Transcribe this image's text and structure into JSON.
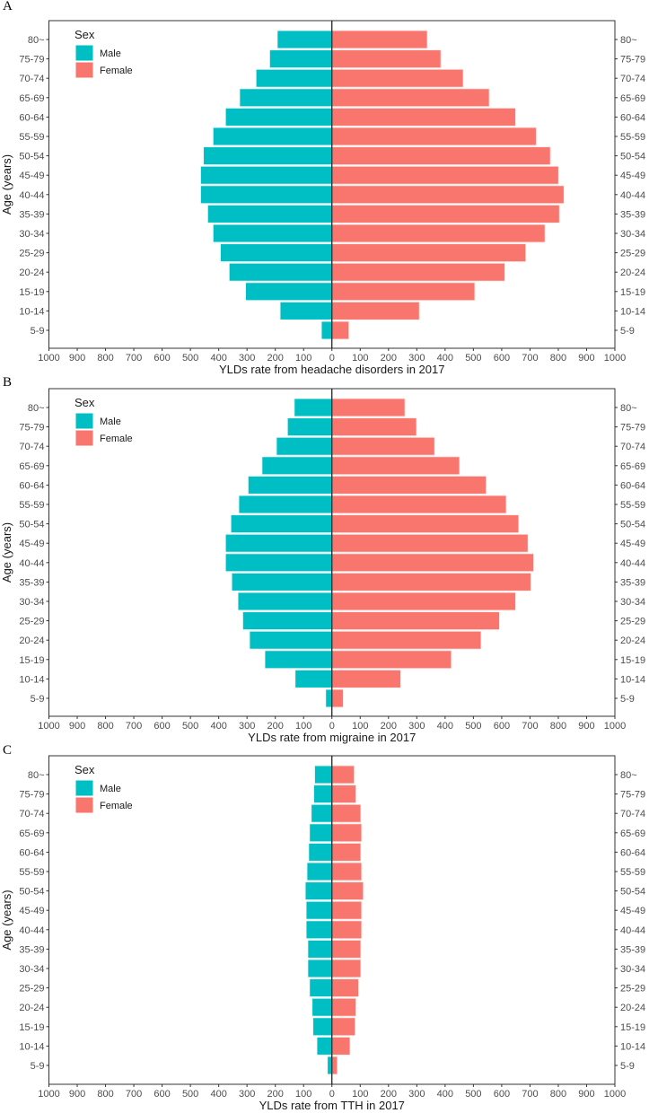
{
  "chart_data": [
    {
      "type": "bar",
      "panel_label": "A",
      "orientation": "horizontal-pyramid",
      "categories": [
        "80~",
        "75-79",
        "70-74",
        "65-69",
        "60-64",
        "55-59",
        "50-54",
        "45-49",
        "40-44",
        "35-39",
        "30-34",
        "25-29",
        "20-24",
        "15-19",
        "10-14",
        "5-9"
      ],
      "series": [
        {
          "name": "Male",
          "color": "#00BFC4",
          "values": [
            193,
            220,
            268,
            326,
            376,
            420,
            454,
            464,
            464,
            439,
            420,
            394,
            363,
            305,
            183,
            37
          ]
        },
        {
          "name": "Female",
          "color": "#F8766D",
          "values": [
            337,
            385,
            464,
            556,
            649,
            722,
            772,
            801,
            820,
            804,
            753,
            685,
            611,
            505,
            309,
            60
          ]
        }
      ],
      "xlabel": "YLDs rate from headache disorders in 2017",
      "ylabel": "Age (years)",
      "xlim": [
        -1000,
        1000
      ],
      "xticks": [
        "1000",
        "900",
        "800",
        "700",
        "600",
        "500",
        "400",
        "300",
        "200",
        "100",
        "0",
        "100",
        "200",
        "300",
        "400",
        "500",
        "600",
        "700",
        "800",
        "900",
        "1000"
      ],
      "legend_title": "Sex",
      "legend_position": "top-left",
      "grid": false
    },
    {
      "type": "bar",
      "panel_label": "B",
      "orientation": "horizontal-pyramid",
      "categories": [
        "80~",
        "75-79",
        "70-74",
        "65-69",
        "60-64",
        "55-59",
        "50-54",
        "45-49",
        "40-44",
        "35-39",
        "30-34",
        "25-29",
        "20-24",
        "15-19",
        "10-14",
        "5-9"
      ],
      "series": [
        {
          "name": "Male",
          "color": "#00BFC4",
          "values": [
            133,
            157,
            196,
            247,
            296,
            329,
            357,
            376,
            376,
            354,
            332,
            315,
            291,
            237,
            130,
            22
          ]
        },
        {
          "name": "Female",
          "color": "#F8766D",
          "values": [
            258,
            299,
            363,
            451,
            545,
            616,
            660,
            693,
            713,
            703,
            649,
            592,
            527,
            422,
            243,
            40
          ]
        }
      ],
      "xlabel": "YLDs rate from migraine in 2017",
      "ylabel": "Age (years)",
      "xlim": [
        -1000,
        1000
      ],
      "xticks": [
        "1000",
        "900",
        "800",
        "700",
        "600",
        "500",
        "400",
        "300",
        "200",
        "100",
        "0",
        "100",
        "200",
        "300",
        "400",
        "500",
        "600",
        "700",
        "800",
        "900",
        "1000"
      ],
      "legend_title": "Sex",
      "legend_position": "top-left",
      "grid": false
    },
    {
      "type": "bar",
      "panel_label": "C",
      "orientation": "horizontal-pyramid",
      "categories": [
        "80~",
        "75-79",
        "70-74",
        "65-69",
        "60-64",
        "55-59",
        "50-54",
        "45-49",
        "40-44",
        "35-39",
        "30-34",
        "25-29",
        "20-24",
        "15-19",
        "10-14",
        "5-9"
      ],
      "series": [
        {
          "name": "Male",
          "color": "#00BFC4",
          "values": [
            61,
            64,
            73,
            79,
            82,
            88,
            94,
            91,
            91,
            85,
            85,
            79,
            70,
            67,
            53,
            16
          ]
        },
        {
          "name": "Female",
          "color": "#F8766D",
          "values": [
            79,
            85,
            102,
            105,
            102,
            105,
            111,
            105,
            105,
            102,
            102,
            94,
            85,
            82,
            64,
            19
          ]
        }
      ],
      "xlabel": "YLDs rate from TTH in 2017",
      "ylabel": "Age (years)",
      "xlim": [
        -1000,
        1000
      ],
      "xticks": [
        "1000",
        "900",
        "800",
        "700",
        "600",
        "500",
        "400",
        "300",
        "200",
        "100",
        "0",
        "100",
        "200",
        "300",
        "400",
        "500",
        "600",
        "700",
        "800",
        "900",
        "1000"
      ],
      "legend_title": "Sex",
      "legend_position": "top-left",
      "grid": false
    }
  ]
}
